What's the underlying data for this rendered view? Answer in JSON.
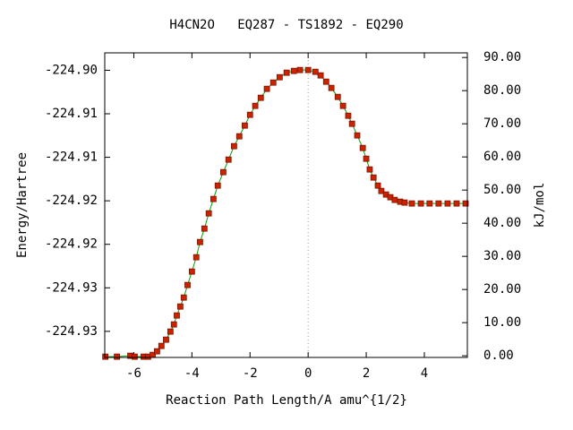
{
  "chart_data": {
    "type": "line",
    "title": "H4CN2O   EQ287 - TS1892 - EQ290",
    "x_label": "Reaction Path Length/A amu^{1/2}",
    "y_label": "Energy/Hartree",
    "y2_label": "kJ/mol",
    "xlim": [
      -7.0,
      5.48
    ],
    "xticks": [
      -6,
      -4,
      -2,
      0,
      2,
      4
    ],
    "ylim": [
      -224.933,
      -224.898
    ],
    "yticks": [
      {
        "value": -224.9,
        "label": "-224.90"
      },
      {
        "value": -224.905,
        "label": "-224.91"
      },
      {
        "value": -224.91,
        "label": "-224.91"
      },
      {
        "value": -224.915,
        "label": "-224.92"
      },
      {
        "value": -224.92,
        "label": "-224.92"
      },
      {
        "value": -224.925,
        "label": "-224.93"
      },
      {
        "value": -224.93,
        "label": "-224.93"
      }
    ],
    "y2lim": [
      -0.5,
      91.4
    ],
    "y2ticks": [
      {
        "value": 0,
        "label": "0.00"
      },
      {
        "value": 10,
        "label": "10.00"
      },
      {
        "value": 20,
        "label": "20.00"
      },
      {
        "value": 30,
        "label": "30.00"
      },
      {
        "value": 40,
        "label": "40.00"
      },
      {
        "value": 50,
        "label": "50.00"
      },
      {
        "value": 60,
        "label": "60.00"
      },
      {
        "value": 70,
        "label": "70.00"
      },
      {
        "value": 80,
        "label": "80.00"
      },
      {
        "value": 90,
        "label": "90.00"
      }
    ],
    "reference_x": 0,
    "x": [
      -6.98,
      -6.58,
      -6.12,
      -5.97,
      -5.66,
      -5.51,
      -5.35,
      -5.2,
      -5.05,
      -4.89,
      -4.74,
      -4.62,
      -4.52,
      -4.4,
      -4.28,
      -4.15,
      -4.0,
      -3.85,
      -3.72,
      -3.57,
      -3.42,
      -3.26,
      -3.11,
      -2.92,
      -2.74,
      -2.55,
      -2.37,
      -2.18,
      -2.0,
      -1.82,
      -1.63,
      -1.42,
      -1.2,
      -0.98,
      -0.74,
      -0.49,
      -0.28,
      0.0,
      0.25,
      0.43,
      0.62,
      0.8,
      1.02,
      1.2,
      1.38,
      1.51,
      1.69,
      1.88,
      2.0,
      2.12,
      2.25,
      2.4,
      2.52,
      2.68,
      2.83,
      2.98,
      3.17,
      3.32,
      3.57,
      3.88,
      4.18,
      4.49,
      4.8,
      5.11,
      5.42
    ],
    "series": [
      {
        "axis": "y2",
        "line_color": "#00a000",
        "color": "#cc2200",
        "values": [
          -0.27,
          -0.27,
          0.0,
          -0.27,
          -0.27,
          -0.27,
          0.27,
          1.35,
          2.97,
          4.86,
          7.3,
          9.46,
          12.16,
          14.86,
          17.57,
          21.35,
          25.41,
          29.73,
          34.32,
          38.38,
          42.97,
          47.3,
          51.35,
          55.41,
          59.19,
          63.24,
          66.22,
          69.46,
          72.7,
          75.41,
          77.84,
          80.54,
          82.43,
          84.05,
          85.41,
          85.95,
          86.22,
          86.22,
          85.68,
          84.59,
          82.7,
          80.81,
          78.11,
          75.41,
          72.43,
          70.0,
          66.49,
          62.7,
          59.46,
          56.22,
          53.78,
          51.35,
          49.73,
          48.65,
          47.84,
          47.03,
          46.49,
          46.22,
          45.95,
          45.95,
          45.95,
          45.95,
          45.95,
          45.95,
          45.95
        ]
      }
    ]
  }
}
